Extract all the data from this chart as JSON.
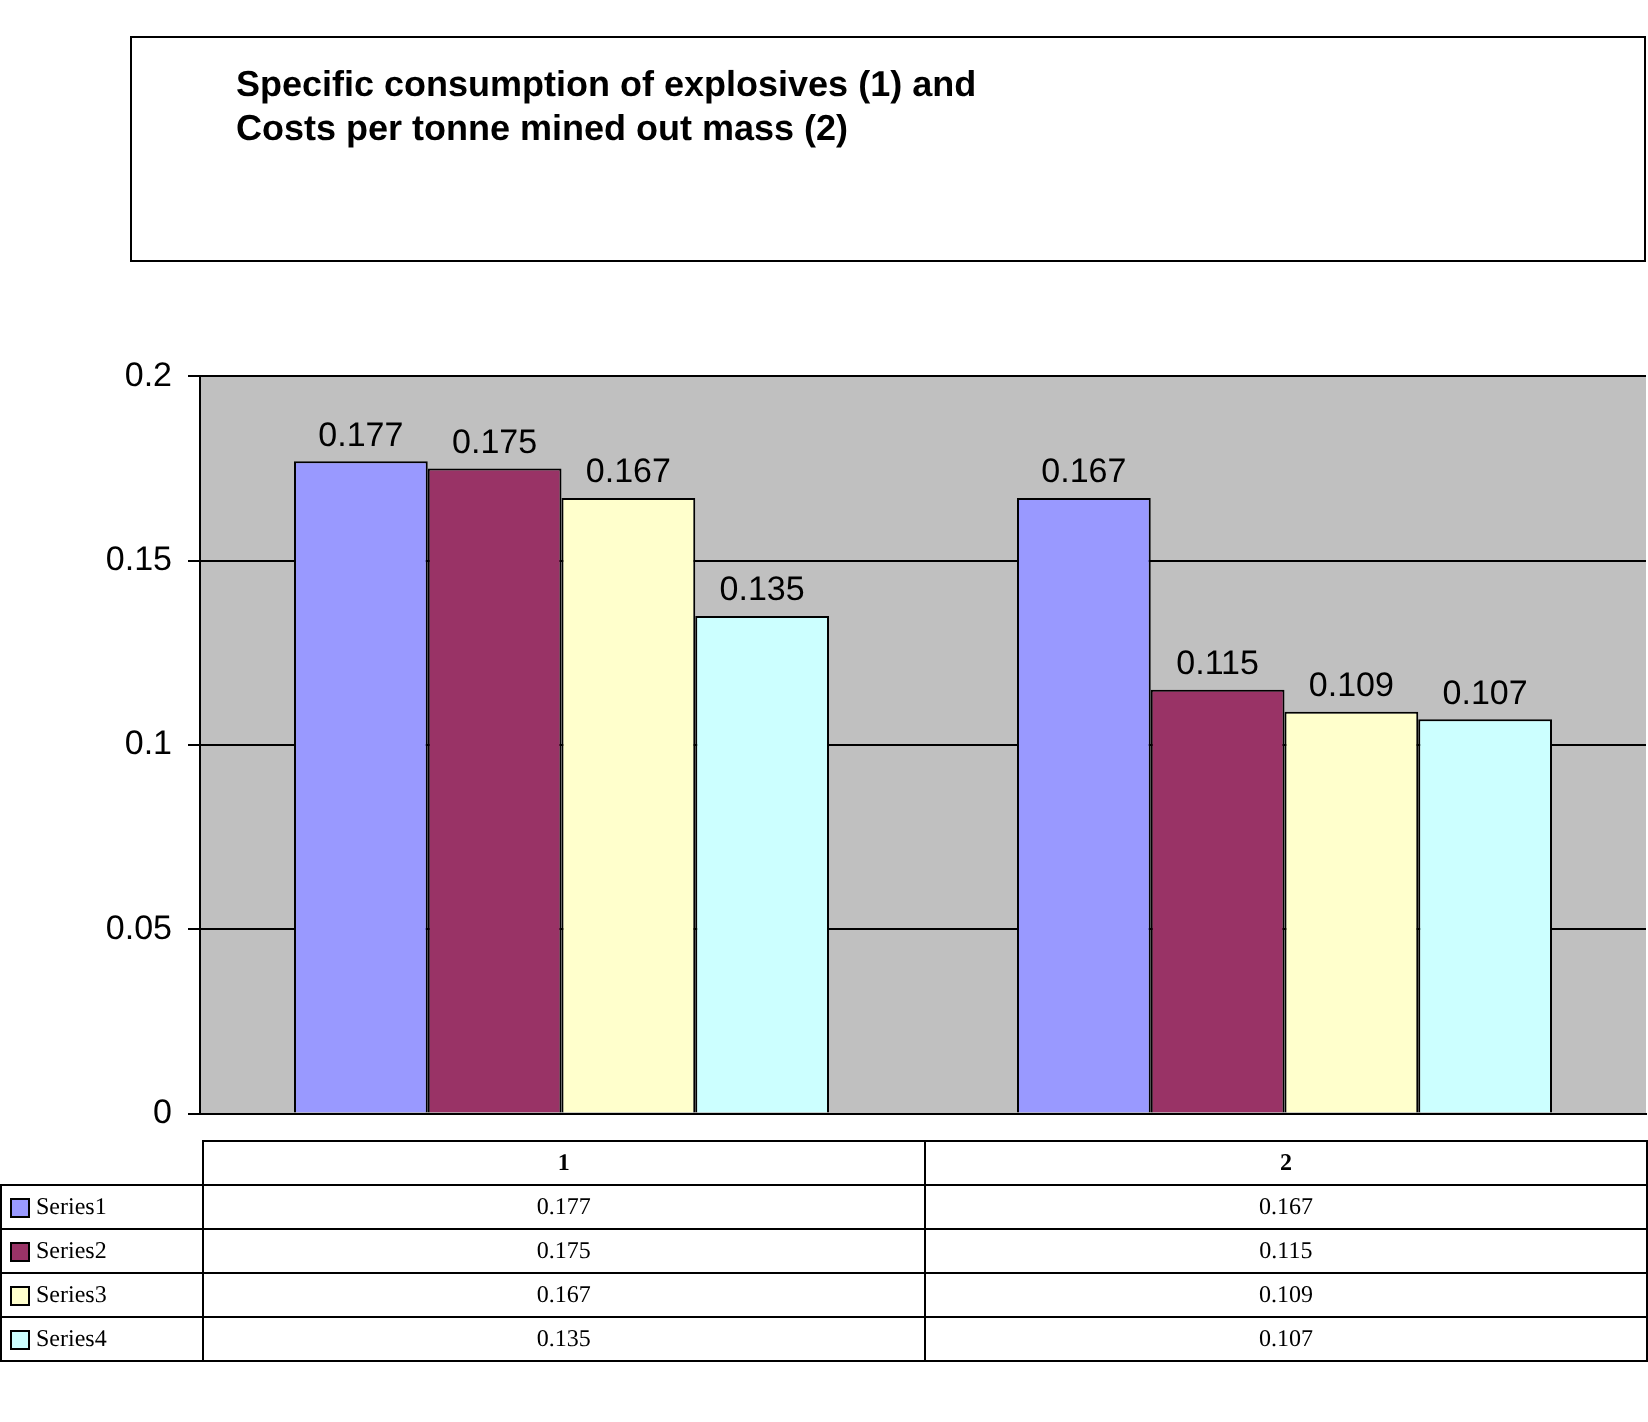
{
  "chart_data": {
    "type": "bar",
    "title": "Specific consumption of explosives (1) and\nCosts per tonne mined out mass (2)",
    "categories": [
      "1",
      "2"
    ],
    "series": [
      {
        "name": "Series1",
        "color": "#9999ff",
        "values": [
          0.177,
          0.167
        ]
      },
      {
        "name": "Series2",
        "color": "#993366",
        "values": [
          0.175,
          0.115
        ]
      },
      {
        "name": "Series3",
        "color": "#ffffcc",
        "values": [
          0.167,
          0.109
        ]
      },
      {
        "name": "Series4",
        "color": "#ccffff",
        "values": [
          0.135,
          0.107
        ]
      }
    ],
    "annotations": [
      "0.177",
      "0.167",
      "0.175",
      "0.115",
      "0.167",
      "0.109",
      "0.135",
      "0.107"
    ],
    "ylim": [
      0,
      0.2
    ],
    "yticks": [
      0,
      0.05,
      0.1,
      0.15,
      0.2
    ],
    "grid": "y",
    "legend": "bottom",
    "data_labels": true
  }
}
